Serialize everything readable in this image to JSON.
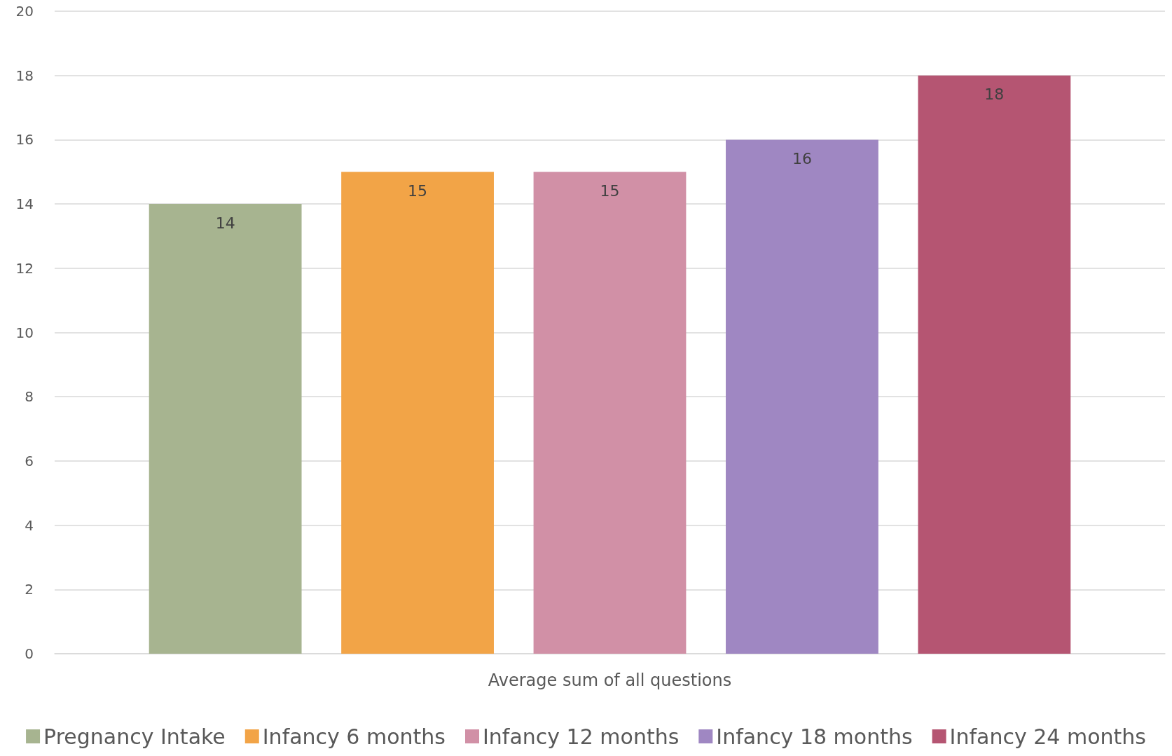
{
  "chart_data": {
    "type": "bar",
    "categories": [
      "Average sum of all questions"
    ],
    "series": [
      {
        "name": "Pregnancy Intake",
        "color": "#a7b490",
        "values": [
          14
        ]
      },
      {
        "name": "Infancy 6 months",
        "color": "#f2a447",
        "values": [
          15
        ]
      },
      {
        "name": "Infancy 12 months",
        "color": "#d190a6",
        "values": [
          15
        ]
      },
      {
        "name": "Infancy 18 months",
        "color": "#9f87c2",
        "values": [
          16
        ]
      },
      {
        "name": "Infancy 24 months",
        "color": "#b55572",
        "values": [
          18
        ]
      }
    ],
    "ylim": [
      0,
      20
    ],
    "yticks": [
      0,
      2,
      4,
      6,
      8,
      10,
      12,
      14,
      16,
      18,
      20
    ],
    "grid": "y",
    "legend": "bottom",
    "data_labels": true
  }
}
